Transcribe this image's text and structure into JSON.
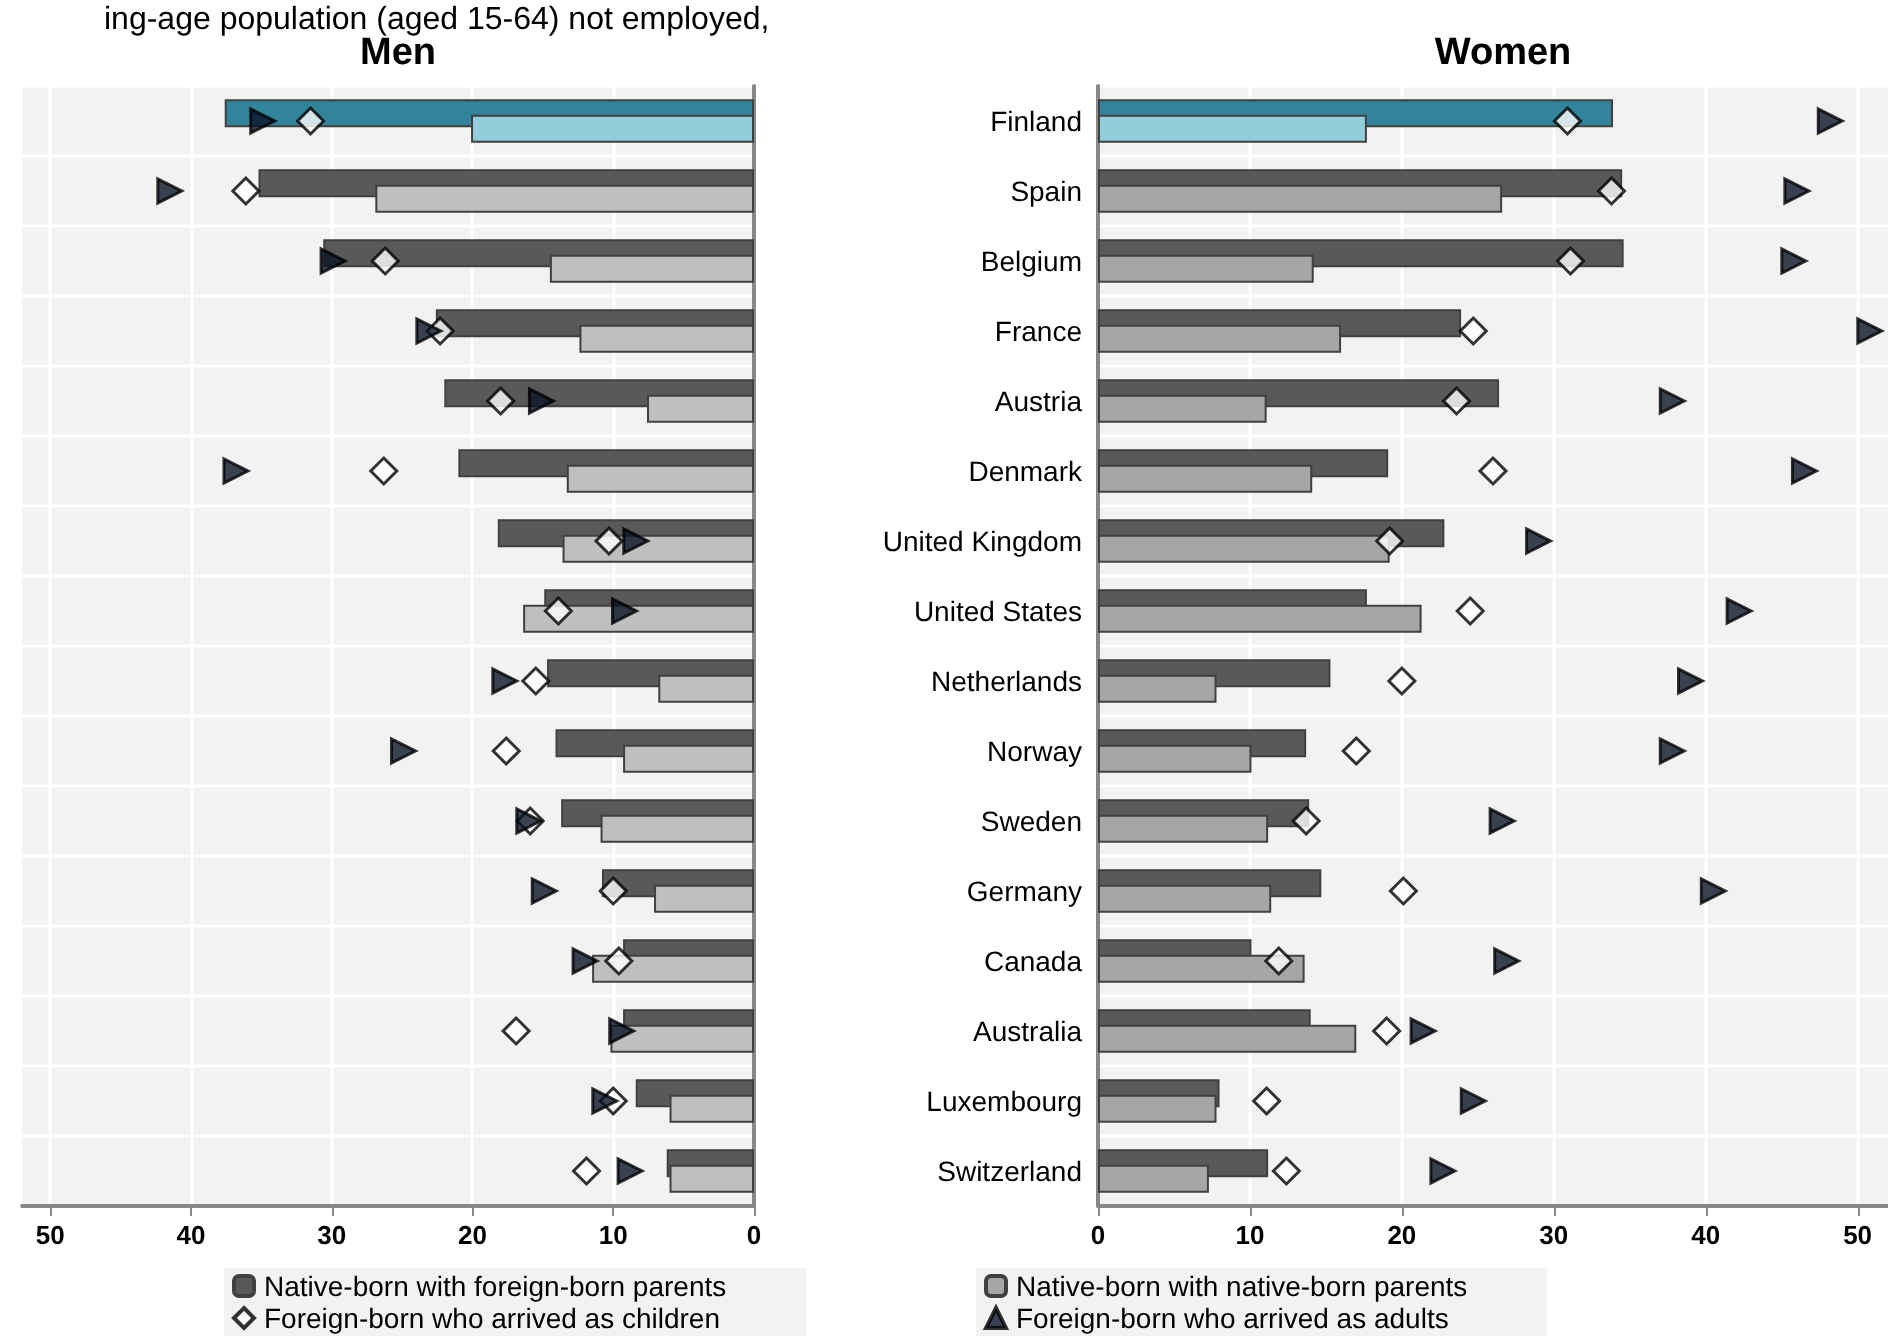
{
  "chart_data": [
    {
      "type": "bar",
      "title": "Men",
      "orientation": "horizontal",
      "grid": true,
      "tick_labels": "x",
      "categories": [
        null,
        null,
        null,
        null,
        null,
        null,
        null,
        null,
        null,
        null,
        null,
        null,
        null,
        null,
        null,
        null
      ],
      "xlim": [
        52,
        0
      ],
      "xticks": [
        50,
        40,
        30,
        20,
        10,
        0
      ],
      "series": [
        {
          "type": "bar",
          "color": "#595959",
          "colors": [
            "#31849b",
            "#595959",
            "#595959",
            "#595959",
            "#595959",
            "#595959",
            "#595959",
            "#595959",
            "#595959",
            "#595959",
            "#595959",
            "#595959",
            "#595959",
            "#595959",
            "#595959",
            "#595959"
          ],
          "values": [
            37.6,
            35.2,
            30.6,
            22.6,
            22.0,
            21.0,
            18.2,
            14.9,
            14.7,
            14.1,
            13.7,
            10.8,
            9.3,
            9.3,
            8.4,
            6.2
          ]
        },
        {
          "type": "bar",
          "color": "#bfbfbf",
          "colors": [
            "#92cddc",
            "#bfbfbf",
            "#bfbfbf",
            "#bfbfbf",
            "#bfbfbf",
            "#bfbfbf",
            "#bfbfbf",
            "#bfbfbf",
            "#bfbfbf",
            "#bfbfbf",
            "#bfbfbf",
            "#bfbfbf",
            "#bfbfbf",
            "#bfbfbf",
            "#bfbfbf",
            "#bfbfbf"
          ],
          "values": [
            20.1,
            26.9,
            14.5,
            12.4,
            7.6,
            13.3,
            13.6,
            16.4,
            6.8,
            9.3,
            10.9,
            7.1,
            11.5,
            10.2,
            6.0,
            6.0
          ]
        },
        {
          "type": "scatter",
          "marker": "diamond",
          "color": "#ffffff",
          "values": [
            31.5,
            36.1,
            26.2,
            22.3,
            18.0,
            26.3,
            10.3,
            13.9,
            15.5,
            17.6,
            15.9,
            10.0,
            9.6,
            16.9,
            10.0,
            11.9
          ]
        },
        {
          "type": "scatter",
          "marker": "triangle",
          "color": "#0a1428",
          "values": [
            34.9,
            41.5,
            29.9,
            23.1,
            15.1,
            36.8,
            8.4,
            9.2,
            17.7,
            24.9,
            16.0,
            14.9,
            12.0,
            9.4,
            10.6,
            8.8
          ]
        }
      ]
    },
    {
      "type": "bar",
      "title": "Women",
      "orientation": "horizontal",
      "grid": true,
      "legend": "bottom",
      "annotations": [
        "ing-age population (aged 15-64) not employed,"
      ],
      "categories": [
        "Finland",
        "Spain",
        "Belgium",
        "France",
        "Austria",
        "Denmark",
        "United Kingdom",
        "United States",
        "Netherlands",
        "Norway",
        "Sweden",
        "Germany",
        "Canada",
        "Australia",
        "Luxembourg",
        "Switzerland"
      ],
      "xlim": [
        0,
        52
      ],
      "xticks": [
        0,
        10,
        20,
        30,
        40,
        50
      ],
      "series": [
        {
          "name": "Native-born with foreign-born parents",
          "type": "bar",
          "color": "#595959",
          "colors": [
            "#31849b",
            "#595959",
            "#595959",
            "#595959",
            "#595959",
            "#595959",
            "#595959",
            "#595959",
            "#595959",
            "#595959",
            "#595959",
            "#595959",
            "#595959",
            "#595959",
            "#595959",
            "#595959"
          ],
          "values": [
            33.9,
            34.5,
            34.6,
            23.9,
            26.4,
            19.1,
            22.8,
            17.7,
            15.3,
            13.7,
            13.9,
            14.7,
            10.1,
            14.0,
            8.0,
            11.2
          ]
        },
        {
          "name": "Native-born with native-born parents",
          "type": "bar",
          "color": "#a6a6a6",
          "colors": [
            "#92cddc",
            "#a6a6a6",
            "#a6a6a6",
            "#a6a6a6",
            "#a6a6a6",
            "#a6a6a6",
            "#a6a6a6",
            "#a6a6a6",
            "#a6a6a6",
            "#a6a6a6",
            "#a6a6a6",
            "#a6a6a6",
            "#a6a6a6",
            "#a6a6a6",
            "#a6a6a6",
            "#a6a6a6"
          ],
          "values": [
            17.7,
            26.6,
            14.2,
            16.0,
            11.1,
            14.1,
            19.2,
            21.3,
            7.8,
            10.1,
            11.2,
            11.4,
            13.6,
            17.0,
            7.8,
            7.3
          ]
        },
        {
          "name": "Foreign-born who arrived as children",
          "type": "scatter",
          "marker": "diamond",
          "color": "#ffffff",
          "values": [
            30.9,
            33.8,
            31.1,
            24.7,
            23.6,
            26.0,
            19.2,
            24.5,
            20.0,
            17.0,
            13.7,
            20.1,
            11.9,
            19.0,
            11.1,
            12.4
          ]
        },
        {
          "name": "Foreign-born who arrived as adults",
          "type": "scatter",
          "marker": "triangle",
          "color": "#0a1428",
          "values": [
            48.2,
            46.0,
            45.8,
            50.8,
            37.8,
            46.5,
            29.0,
            42.2,
            39.0,
            37.8,
            26.6,
            40.5,
            26.9,
            21.4,
            24.7,
            22.7
          ]
        }
      ]
    }
  ]
}
